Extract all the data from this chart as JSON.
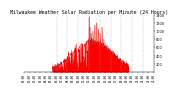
{
  "title": "Milwaukee Weather Solar Radiation per Minute (24 Hours)",
  "title_fontsize": 3.5,
  "bg_color": "#ffffff",
  "bar_color": "#ff0000",
  "bar_edge_color": "#dd0000",
  "ylim": [
    0,
    1400
  ],
  "xlim": [
    0,
    1440
  ],
  "yticks": [
    200,
    400,
    600,
    800,
    1000,
    1200,
    1400
  ],
  "ytick_fontsize": 2.5,
  "xtick_fontsize": 2.0,
  "grid_color": "#999999",
  "grid_positions": [
    360,
    480,
    600,
    720,
    840,
    960,
    1080,
    1200,
    1320
  ],
  "num_minutes": 1440,
  "seed": 7
}
